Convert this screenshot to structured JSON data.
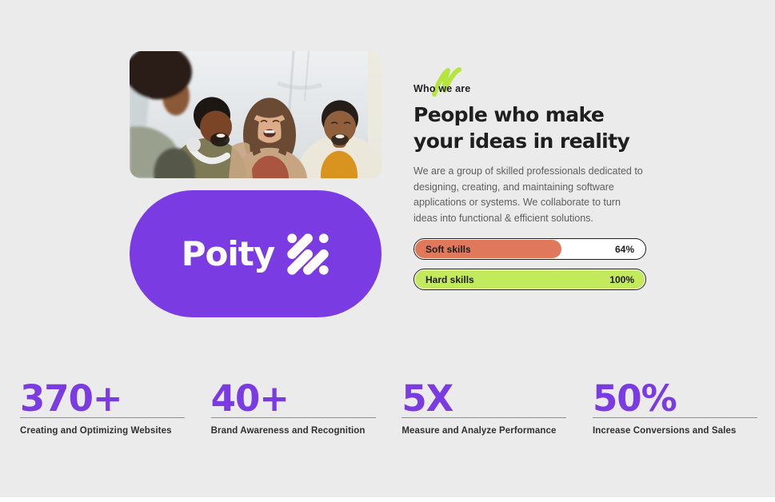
{
  "brand": {
    "name": "Poity",
    "pill_color": "#7a3be2",
    "mark": "dot-grid-logo"
  },
  "about": {
    "eyebrow": "Who we are",
    "heading_line1": "People who make",
    "heading_line2": "your ideas in reality",
    "paragraph": "We are a group of skilled professionals dedicated to designing, creating, and maintaining software applications or systems. We collaborate to turn ideas into functional & efficient solutions.",
    "skills": [
      {
        "label": "Soft skills",
        "value": "64%",
        "percent": 64,
        "fill_color": "#e0795b"
      },
      {
        "label": "Hard skills",
        "value": "100%",
        "percent": 100,
        "fill_color": "#c3e95c"
      }
    ]
  },
  "photo": {
    "alt": "four-friends-laughing-photo"
  },
  "stats": [
    {
      "value": "370+",
      "label": "Creating and Optimizing Websites"
    },
    {
      "value": "40+",
      "label": "Brand Awareness and Recognition"
    },
    {
      "value": "5X",
      "label": "Measure and Analyze Performance"
    },
    {
      "value": "50%",
      "label": "Increase Conversions and Sales"
    }
  ],
  "colors": {
    "page_bg": "#ebebeb",
    "accent_purple": "#7a3be2",
    "accent_coral": "#e0795b",
    "accent_lime": "#c3e95c",
    "scribble_lime": "#b5e53f",
    "text_dark": "#1f1f1f",
    "text_muted": "#5e5e5e",
    "underline_gray": "#8f8f8f"
  }
}
